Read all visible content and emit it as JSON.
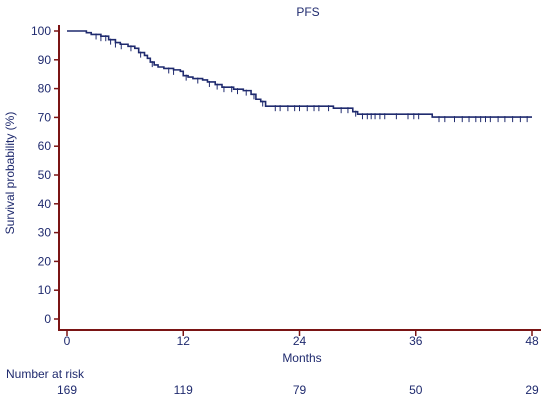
{
  "chart_data": {
    "type": "line",
    "title": "PFS",
    "xlabel": "Months",
    "ylabel": "Survival probability (%)",
    "xlim": [
      0,
      48
    ],
    "ylim": [
      0,
      100
    ],
    "x_ticks": [
      "0",
      "12",
      "24",
      "36",
      "48"
    ],
    "y_ticks": [
      "0",
      "10",
      "20",
      "30",
      "40",
      "50",
      "60",
      "70",
      "80",
      "90",
      "100"
    ],
    "series": [
      {
        "x": [
          0,
          2,
          2.5,
          3.5,
          4.3,
          5,
          5.5,
          6.3,
          7,
          7.4,
          8,
          8.3,
          8.6,
          9,
          9.4,
          10,
          10.5,
          11,
          11.7,
          12,
          12.5,
          13,
          14,
          14.5,
          15.3,
          16,
          16.5,
          17.2,
          18.2,
          19,
          19.5,
          20,
          20.5,
          27.5,
          29.5,
          30,
          37.7,
          48
        ],
        "y": [
          100,
          99.4,
          98.8,
          98.2,
          97,
          96,
          95.4,
          94.7,
          94,
          92.5,
          91.5,
          90.5,
          89.2,
          88.2,
          87.5,
          87,
          87,
          86.5,
          86,
          84.5,
          84,
          83.5,
          83,
          82.3,
          81.4,
          80.5,
          80.5,
          79.8,
          79.3,
          78,
          76.3,
          75.5,
          73.9,
          73.2,
          72,
          71.1,
          70.1,
          70.1
        ]
      }
    ],
    "censor_times": [
      3,
      3.5,
      4,
      4.5,
      5,
      5.6,
      6.6,
      7.6,
      8.8,
      10.5,
      11,
      12.3,
      13.5,
      14.7,
      15.5,
      16.2,
      17,
      17.6,
      18.5,
      19.3,
      20.2,
      21.5,
      22,
      22.8,
      23.5,
      24,
      24.8,
      25.5,
      26,
      27,
      28.3,
      29,
      29.8,
      30.5,
      31,
      31.4,
      31.8,
      32.3,
      32.8,
      34,
      35.2,
      35.8,
      36.3,
      38.4,
      39,
      40,
      40.8,
      41.5,
      42.2,
      42.7,
      43.2,
      43.7,
      44.5,
      45.2,
      46,
      46.8,
      47.5
    ],
    "number_at_risk": {
      "title": "Number at risk",
      "values": [
        "169",
        "119",
        "79",
        "50",
        "29"
      ]
    },
    "colors": {
      "line": "#1f2a6e",
      "axis": "#7a1414",
      "text": "#1f2a6e"
    },
    "grid": false
  }
}
